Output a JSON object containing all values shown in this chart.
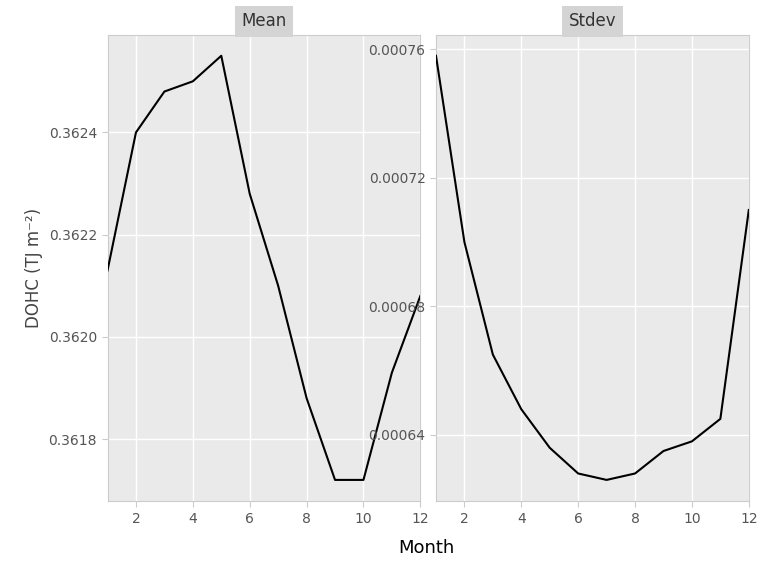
{
  "months": [
    1,
    2,
    3,
    4,
    5,
    6,
    7,
    8,
    9,
    10,
    11,
    12
  ],
  "mean_values": [
    0.36213,
    0.3624,
    0.36248,
    0.3625,
    0.36255,
    0.36228,
    0.3621,
    0.36188,
    0.36172,
    0.36172,
    0.36193,
    0.36208
  ],
  "stdev_values": [
    0.000758,
    0.0007,
    0.000665,
    0.000648,
    0.000636,
    0.000628,
    0.000626,
    0.000628,
    0.000635,
    0.000638,
    0.000645,
    0.00071
  ],
  "mean_title": "Mean",
  "stdev_title": "Stdev",
  "xlabel": "Month",
  "ylabel": "DOHC (TJ m⁻²)",
  "line_color": "#000000",
  "line_width": 1.5,
  "panel_title_bg": "#d4d4d4",
  "background_color": "#ffffff",
  "plot_bg_color": "#eaeaea",
  "grid_color": "#ffffff",
  "xticks": [
    2,
    4,
    6,
    8,
    10,
    12
  ],
  "mean_yticks": [
    0.3618,
    0.362,
    0.3622,
    0.3624
  ],
  "stdev_yticks": [
    0.00064,
    0.00068,
    0.00072,
    0.00076
  ],
  "tick_color": "#555555",
  "spine_color": "#cccccc"
}
